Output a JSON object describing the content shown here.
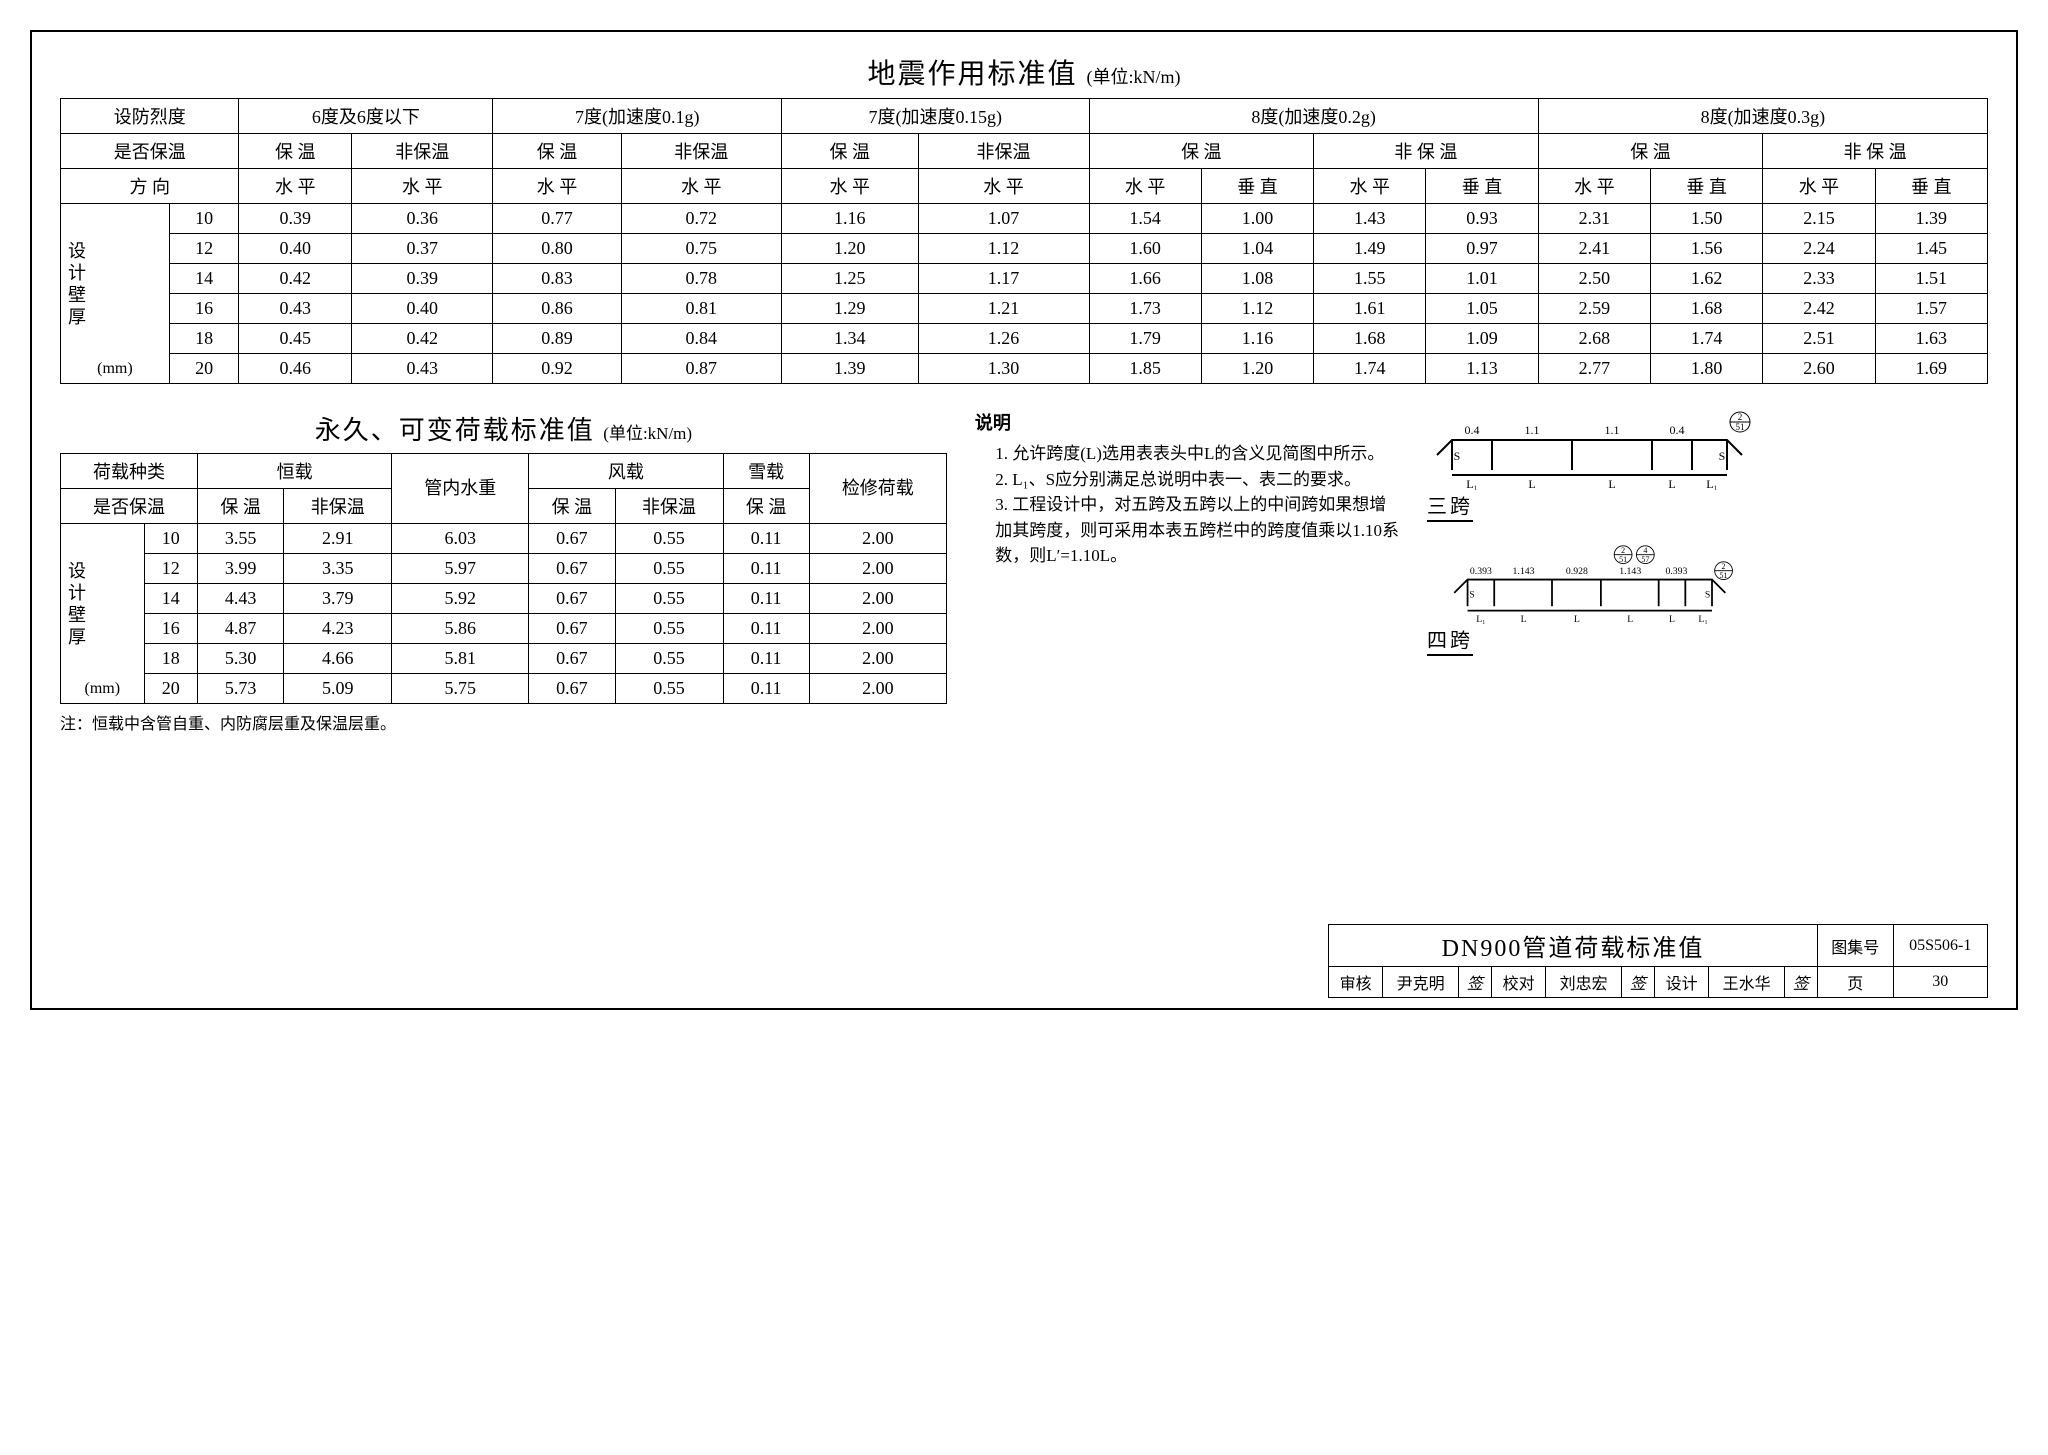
{
  "table1": {
    "title": "地震作用标准值",
    "unit": "(单位:kN/m)",
    "h_intensity": "设防烈度",
    "h_insulated": "是否保温",
    "h_direction": "方 向",
    "v_label_zh": "设计壁厚",
    "v_label_mm": "(mm)",
    "groups": [
      {
        "label": "6度及6度以下",
        "sub": [
          "保 温",
          "非保温"
        ],
        "dir": [
          "水 平",
          "水 平"
        ]
      },
      {
        "label": "7度(加速度0.1g)",
        "sub": [
          "保 温",
          "非保温"
        ],
        "dir": [
          "水 平",
          "水 平"
        ]
      },
      {
        "label": "7度(加速度0.15g)",
        "sub": [
          "保 温",
          "非保温"
        ],
        "dir": [
          "水 平",
          "水 平"
        ]
      },
      {
        "label": "8度(加速度0.2g)",
        "sub": [
          "保 温",
          "非 保 温"
        ],
        "dir": [
          "水 平",
          "垂 直",
          "水 平",
          "垂 直"
        ]
      },
      {
        "label": "8度(加速度0.3g)",
        "sub": [
          "保 温",
          "非 保 温"
        ],
        "dir": [
          "水 平",
          "垂 直",
          "水 平",
          "垂 直"
        ]
      }
    ],
    "thickness": [
      "10",
      "12",
      "14",
      "16",
      "18",
      "20"
    ],
    "rows": [
      [
        "0.39",
        "0.36",
        "0.77",
        "0.72",
        "1.16",
        "1.07",
        "1.54",
        "1.00",
        "1.43",
        "0.93",
        "2.31",
        "1.50",
        "2.15",
        "1.39"
      ],
      [
        "0.40",
        "0.37",
        "0.80",
        "0.75",
        "1.20",
        "1.12",
        "1.60",
        "1.04",
        "1.49",
        "0.97",
        "2.41",
        "1.56",
        "2.24",
        "1.45"
      ],
      [
        "0.42",
        "0.39",
        "0.83",
        "0.78",
        "1.25",
        "1.17",
        "1.66",
        "1.08",
        "1.55",
        "1.01",
        "2.50",
        "1.62",
        "2.33",
        "1.51"
      ],
      [
        "0.43",
        "0.40",
        "0.86",
        "0.81",
        "1.29",
        "1.21",
        "1.73",
        "1.12",
        "1.61",
        "1.05",
        "2.59",
        "1.68",
        "2.42",
        "1.57"
      ],
      [
        "0.45",
        "0.42",
        "0.89",
        "0.84",
        "1.34",
        "1.26",
        "1.79",
        "1.16",
        "1.68",
        "1.09",
        "2.68",
        "1.74",
        "2.51",
        "1.63"
      ],
      [
        "0.46",
        "0.43",
        "0.92",
        "0.87",
        "1.39",
        "1.30",
        "1.85",
        "1.20",
        "1.74",
        "1.13",
        "2.77",
        "1.80",
        "2.60",
        "1.69"
      ]
    ]
  },
  "table2": {
    "title": "永久、可变荷载标准值",
    "unit": "(单位:kN/m)",
    "h_kind": "荷载种类",
    "h_dead": "恒载",
    "h_water": "管内水重",
    "h_wind": "风载",
    "h_snow": "雪载",
    "h_repair": "检修荷载",
    "h_insulated": "是否保温",
    "s_bw": "保 温",
    "s_fbw": "非保温",
    "v_label_zh": "设计壁厚",
    "v_label_mm": "(mm)",
    "thickness": [
      "10",
      "12",
      "14",
      "16",
      "18",
      "20"
    ],
    "rows": [
      [
        "3.55",
        "2.91",
        "6.03",
        "0.67",
        "0.55",
        "0.11",
        "2.00"
      ],
      [
        "3.99",
        "3.35",
        "5.97",
        "0.67",
        "0.55",
        "0.11",
        "2.00"
      ],
      [
        "4.43",
        "3.79",
        "5.92",
        "0.67",
        "0.55",
        "0.11",
        "2.00"
      ],
      [
        "4.87",
        "4.23",
        "5.86",
        "0.67",
        "0.55",
        "0.11",
        "2.00"
      ],
      [
        "5.30",
        "4.66",
        "5.81",
        "0.67",
        "0.55",
        "0.11",
        "2.00"
      ],
      [
        "5.73",
        "5.09",
        "5.75",
        "0.67",
        "0.55",
        "0.11",
        "2.00"
      ]
    ],
    "footnote": "注：恒载中含管自重、内防腐层重及保温层重。"
  },
  "notes": {
    "title": "说明",
    "items": [
      "1. 允许跨度(L)选用表表头中L的含义见简图中所示。",
      "2. L₁、S应分别满足总说明中表一、表二的要求。",
      "3. 工程设计中，对五跨及五跨以上的中间跨如果想增加其跨度，则可采用本表五跨栏中的跨度值乘以1.10系数，则L′=1.10L。"
    ]
  },
  "diagram": {
    "span3": {
      "label": "三跨",
      "vals": [
        "0.4",
        "1.1",
        "1.1",
        "0.4"
      ],
      "ref": "2/51",
      "s": "S",
      "l1": "L₁",
      "L": "L"
    },
    "span4": {
      "label": "四跨",
      "vals": [
        "0.393",
        "1.143",
        "0.928",
        "1.143",
        "0.393"
      ],
      "ref1": "2/51",
      "ref2": "4/57",
      "s": "S",
      "l1": "L₁",
      "L": "L"
    }
  },
  "titleblock": {
    "main": "DN900管道荷载标准值",
    "atlas_lbl": "图集号",
    "atlas_no": "05S506-1",
    "audit_lbl": "审核",
    "audit_name": "尹克明",
    "check_lbl": "校对",
    "check_name": "刘忠宏",
    "design_lbl": "设计",
    "design_name": "王水华",
    "page_lbl": "页",
    "page_no": "30"
  }
}
